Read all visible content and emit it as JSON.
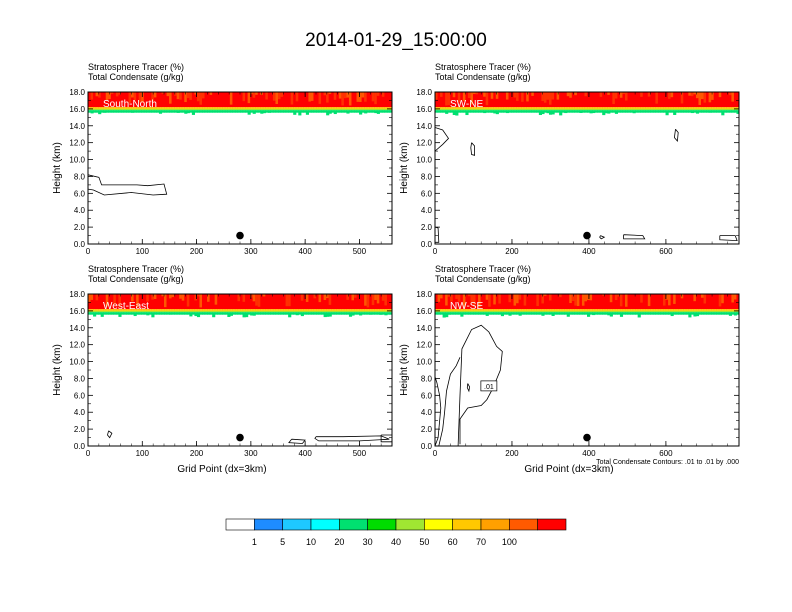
{
  "page": {
    "title": "2014-01-29_15:00:00"
  },
  "footnote": "Total Condensate Contours: .01 to .01 by .000",
  "chart_data": [
    {
      "type": "heatmap",
      "panel": "South-North",
      "title_line1": "Stratosphere Tracer   (%)",
      "title_line2": "Total Condensate   (g/kg)",
      "ylabel": "Height (km)",
      "xlabel": "",
      "xlim": [
        0,
        560
      ],
      "ylim": [
        0,
        18
      ],
      "xticks": [
        0,
        100,
        200,
        300,
        400,
        500
      ],
      "yticks": [
        0.0,
        2.0,
        4.0,
        6.0,
        8.0,
        10.0,
        12.0,
        14.0,
        16.0,
        18.0
      ],
      "ytick_labels": [
        "0.0",
        "2.0",
        "4.0",
        "6.0",
        "8.0",
        "10.0",
        "12.0",
        "14.0",
        "16.0",
        "18.0"
      ],
      "marker": {
        "x": 280,
        "y": 1.0
      },
      "tracer_top": [
        {
          "from_km": 16.2,
          "to_km": 18.0,
          "level": 100
        },
        {
          "from_km": 16.0,
          "to_km": 16.2,
          "level": 50
        },
        {
          "from_km": 15.85,
          "to_km": 16.0,
          "level": 30
        },
        {
          "from_km": 15.55,
          "to_km": 15.85,
          "level": 10
        }
      ],
      "condensate_contours": [
        {
          "points": [
            [
              0,
              8.2
            ],
            [
              20,
              7.9
            ],
            [
              25,
              7.0
            ],
            [
              90,
              7.0
            ],
            [
              110,
              6.9
            ],
            [
              140,
              7.1
            ],
            [
              145,
              5.9
            ],
            [
              120,
              5.8
            ],
            [
              80,
              6.1
            ],
            [
              30,
              5.8
            ],
            [
              10,
              6.4
            ],
            [
              0,
              6.5
            ]
          ]
        }
      ]
    },
    {
      "type": "heatmap",
      "panel": "SW-NE",
      "title_line1": "Stratosphere Tracer   (%)",
      "title_line2": "Total Condensate   (g/kg)",
      "ylabel": "Height (km)",
      "xlabel": "",
      "xlim": [
        0,
        790
      ],
      "ylim": [
        0,
        18
      ],
      "xticks": [
        0,
        200,
        400,
        600
      ],
      "yticks": [
        0.0,
        2.0,
        4.0,
        6.0,
        8.0,
        10.0,
        12.0,
        14.0,
        16.0,
        18.0
      ],
      "ytick_labels": [
        "0.0",
        "2.0",
        "4.0",
        "6.0",
        "8.0",
        "10.0",
        "12.0",
        "14.0",
        "16.0",
        "18.0"
      ],
      "marker": {
        "x": 395,
        "y": 1.0
      },
      "tracer_top": [
        {
          "from_km": 16.2,
          "to_km": 18.0,
          "level": 100
        },
        {
          "from_km": 16.0,
          "to_km": 16.2,
          "level": 50
        },
        {
          "from_km": 15.85,
          "to_km": 16.0,
          "level": 30
        },
        {
          "from_km": 15.55,
          "to_km": 15.85,
          "level": 10
        }
      ],
      "condensate_contours": [
        {
          "points": [
            [
              0,
              13.8
            ],
            [
              20,
              13.5
            ],
            [
              35,
              12.5
            ],
            [
              20,
              11.8
            ],
            [
              0,
              11.0
            ]
          ]
        },
        {
          "points": [
            [
              95,
              12.0
            ],
            [
              103,
              11.6
            ],
            [
              103,
              10.5
            ],
            [
              95,
              10.6
            ],
            [
              93,
              11.4
            ],
            [
              95,
              12.0
            ]
          ]
        },
        {
          "points": [
            [
              625,
              13.6
            ],
            [
              632,
              13.2
            ],
            [
              630,
              12.2
            ],
            [
              622,
              12.6
            ],
            [
              625,
              13.6
            ]
          ]
        },
        {
          "points": [
            [
              0,
              2.0
            ],
            [
              8,
              1.9
            ],
            [
              10,
              0.2
            ],
            [
              0,
              0.2
            ]
          ]
        },
        {
          "points": [
            [
              490,
              1.1
            ],
            [
              540,
              1.0
            ],
            [
              545,
              0.6
            ],
            [
              490,
              0.6
            ],
            [
              490,
              1.1
            ]
          ]
        },
        {
          "points": [
            [
              430,
              1.0
            ],
            [
              440,
              0.8
            ],
            [
              432,
              0.6
            ],
            [
              428,
              0.8
            ],
            [
              430,
              1.0
            ]
          ]
        },
        {
          "points": [
            [
              740,
              1.0
            ],
            [
              780,
              1.0
            ],
            [
              785,
              0.4
            ],
            [
              740,
              0.5
            ],
            [
              740,
              1.0
            ]
          ]
        }
      ]
    },
    {
      "type": "heatmap",
      "panel": "West-East",
      "title_line1": "Stratosphere Tracer   (%)",
      "title_line2": "Total Condensate   (g/kg)",
      "ylabel": "Height (km)",
      "xlabel": "Grid Point (dx=3km)",
      "xlim": [
        0,
        560
      ],
      "ylim": [
        0,
        18
      ],
      "xticks": [
        0,
        100,
        200,
        300,
        400,
        500
      ],
      "yticks": [
        0.0,
        2.0,
        4.0,
        6.0,
        8.0,
        10.0,
        12.0,
        14.0,
        16.0,
        18.0
      ],
      "ytick_labels": [
        "0.0",
        "2.0",
        "4.0",
        "6.0",
        "8.0",
        "10.0",
        "12.0",
        "14.0",
        "16.0",
        "18.0"
      ],
      "marker": {
        "x": 280,
        "y": 1.0
      },
      "tracer_top": [
        {
          "from_km": 16.2,
          "to_km": 18.0,
          "level": 100
        },
        {
          "from_km": 16.0,
          "to_km": 16.2,
          "level": 50
        },
        {
          "from_km": 15.85,
          "to_km": 16.0,
          "level": 30
        },
        {
          "from_km": 15.55,
          "to_km": 15.85,
          "level": 10
        }
      ],
      "condensate_contours": [
        {
          "points": [
            [
              38,
              1.8
            ],
            [
              44,
              1.5
            ],
            [
              40,
              1.0
            ],
            [
              36,
              1.3
            ],
            [
              38,
              1.8
            ]
          ]
        },
        {
          "points": [
            [
              375,
              0.8
            ],
            [
              400,
              0.7
            ],
            [
              395,
              0.3
            ],
            [
              370,
              0.4
            ],
            [
              375,
              0.8
            ]
          ]
        },
        {
          "points": [
            [
              420,
              1.1
            ],
            [
              470,
              1.1
            ],
            [
              540,
              1.2
            ],
            [
              555,
              0.8
            ],
            [
              500,
              0.6
            ],
            [
              425,
              0.6
            ],
            [
              418,
              0.9
            ],
            [
              420,
              1.1
            ]
          ]
        },
        {
          "points": [
            [
              540,
              1.3
            ],
            [
              560,
              1.3
            ],
            [
              560,
              0.5
            ],
            [
              540,
              0.5
            ],
            [
              540,
              1.3
            ]
          ]
        }
      ]
    },
    {
      "type": "heatmap",
      "panel": "NW-SE",
      "title_line1": "Stratosphere Tracer   (%)",
      "title_line2": "Total Condensate   (g/kg)",
      "ylabel": "Height (km)",
      "xlabel": "Grid Point (dx=3km)",
      "xlim": [
        0,
        790
      ],
      "ylim": [
        0,
        18
      ],
      "xticks": [
        0,
        200,
        400,
        600
      ],
      "yticks": [
        0.0,
        2.0,
        4.0,
        6.0,
        8.0,
        10.0,
        12.0,
        14.0,
        16.0,
        18.0
      ],
      "ytick_labels": [
        "0.0",
        "2.0",
        "4.0",
        "6.0",
        "8.0",
        "10.0",
        "12.0",
        "14.0",
        "16.0",
        "18.0"
      ],
      "marker": {
        "x": 395,
        "y": 1.0
      },
      "contour_label": ".01",
      "contour_label_pos": {
        "x": 140,
        "y": 7.0
      },
      "tracer_top": [
        {
          "from_km": 16.2,
          "to_km": 18.0,
          "level": 100
        },
        {
          "from_km": 16.0,
          "to_km": 16.2,
          "level": 50
        },
        {
          "from_km": 15.85,
          "to_km": 16.0,
          "level": 30
        },
        {
          "from_km": 15.55,
          "to_km": 15.85,
          "level": 10
        }
      ],
      "condensate_contours": [
        {
          "points": [
            [
              60,
              0.0
            ],
            [
              65,
              6.0
            ],
            [
              70,
              11.5
            ],
            [
              95,
              13.8
            ],
            [
              120,
              14.3
            ],
            [
              140,
              13.5
            ],
            [
              160,
              11.8
            ],
            [
              175,
              11.2
            ],
            [
              170,
              9.0
            ],
            [
              150,
              6.8
            ],
            [
              135,
              5.5
            ],
            [
              120,
              4.8
            ],
            [
              85,
              4.5
            ],
            [
              65,
              3.2
            ],
            [
              65,
              0.2
            ]
          ]
        },
        {
          "points": [
            [
              10,
              0.0
            ],
            [
              20,
              2.0
            ],
            [
              25,
              4.0
            ],
            [
              30,
              6.5
            ],
            [
              40,
              8.5
            ],
            [
              55,
              9.5
            ],
            [
              65,
              10.5
            ]
          ]
        },
        {
          "points": [
            [
              0,
              0.0
            ],
            [
              8,
              1.0
            ],
            [
              15,
              4.5
            ],
            [
              12,
              6.0
            ],
            [
              5,
              7.5
            ],
            [
              0,
              8.2
            ]
          ]
        },
        {
          "points": [
            [
              85,
              7.4
            ],
            [
              90,
              7.0
            ],
            [
              88,
              6.5
            ],
            [
              84,
              6.9
            ],
            [
              85,
              7.4
            ]
          ]
        }
      ]
    }
  ],
  "colorbar": {
    "levels": [
      "1",
      "5",
      "10",
      "20",
      "30",
      "40",
      "50",
      "60",
      "70",
      "100"
    ],
    "colors": [
      "#ffffff",
      "#1e8cff",
      "#1ec8ff",
      "#00ffff",
      "#00e070",
      "#00dc00",
      "#a0e632",
      "#ffff00",
      "#ffc800",
      "#ffa000",
      "#ff5a00",
      "#ff0000"
    ]
  }
}
